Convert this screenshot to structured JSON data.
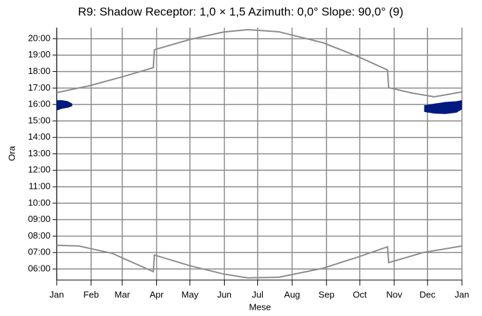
{
  "chart_data": {
    "type": "line",
    "title": "R9: Shadow  Receptor: 1,0 × 1,5  Azimuth: 0,0°  Slope: 90,0° (9)",
    "x_label": "Mese",
    "y_label": "Ora",
    "xlim": [
      0,
      365
    ],
    "xticks": [
      {
        "value": 0,
        "label": "Jan"
      },
      {
        "value": 31,
        "label": "Feb"
      },
      {
        "value": 59,
        "label": "Mar"
      },
      {
        "value": 90,
        "label": "Apr"
      },
      {
        "value": 120,
        "label": "May"
      },
      {
        "value": 151,
        "label": "Jun"
      },
      {
        "value": 181,
        "label": "Jul"
      },
      {
        "value": 212,
        "label": "Aug"
      },
      {
        "value": 243,
        "label": "Sep"
      },
      {
        "value": 273,
        "label": "Oct"
      },
      {
        "value": 304,
        "label": "Nov"
      },
      {
        "value": 334,
        "label": "Dec"
      },
      {
        "value": 365,
        "label": "Jan"
      }
    ],
    "ylim": [
      5.33,
      20.67
    ],
    "yticks": [
      {
        "value": 6,
        "label": "06:00"
      },
      {
        "value": 7,
        "label": "07:00"
      },
      {
        "value": 8,
        "label": "08:00"
      },
      {
        "value": 9,
        "label": "09:00"
      },
      {
        "value": 10,
        "label": "10:00"
      },
      {
        "value": 11,
        "label": "11:00"
      },
      {
        "value": 12,
        "label": "12:00"
      },
      {
        "value": 13,
        "label": "13:00"
      },
      {
        "value": 14,
        "label": "14:00"
      },
      {
        "value": 15,
        "label": "15:00"
      },
      {
        "value": 16,
        "label": "16:00"
      },
      {
        "value": 17,
        "label": "17:00"
      },
      {
        "value": 18,
        "label": "18:00"
      },
      {
        "value": 19,
        "label": "19:00"
      },
      {
        "value": 20,
        "label": "20:00"
      }
    ],
    "grid": true,
    "series": [
      {
        "color": "#8c8c8c",
        "x": [
          0,
          30,
          60,
          87,
          88,
          120,
          150,
          172,
          200,
          240,
          270,
          298,
          299,
          320,
          340,
          365
        ],
        "values": [
          16.72,
          17.15,
          17.7,
          18.24,
          19.33,
          19.95,
          20.4,
          20.55,
          20.42,
          19.75,
          18.95,
          18.1,
          17.02,
          16.7,
          16.47,
          16.76
        ]
      },
      {
        "color": "#8c8c8c",
        "x": [
          0,
          20,
          50,
          87,
          88,
          120,
          150,
          172,
          200,
          240,
          270,
          298,
          299,
          330,
          365
        ],
        "values": [
          7.44,
          7.4,
          6.95,
          5.84,
          6.85,
          6.2,
          5.7,
          5.46,
          5.5,
          6.05,
          6.7,
          7.35,
          6.39,
          7.0,
          7.4
        ]
      }
    ],
    "shadows": [
      {
        "color": "#001a80",
        "x": [
          0,
          5,
          10,
          14
        ],
        "high": [
          16.26,
          16.26,
          16.2,
          16.05
        ],
        "low": [
          15.63,
          15.75,
          15.8,
          15.9
        ]
      },
      {
        "color": "#001a80",
        "x": [
          331,
          340,
          350,
          360,
          365
        ],
        "high": [
          15.95,
          16.05,
          16.15,
          16.2,
          16.26
        ],
        "low": [
          15.55,
          15.45,
          15.42,
          15.5,
          15.7
        ]
      }
    ]
  }
}
